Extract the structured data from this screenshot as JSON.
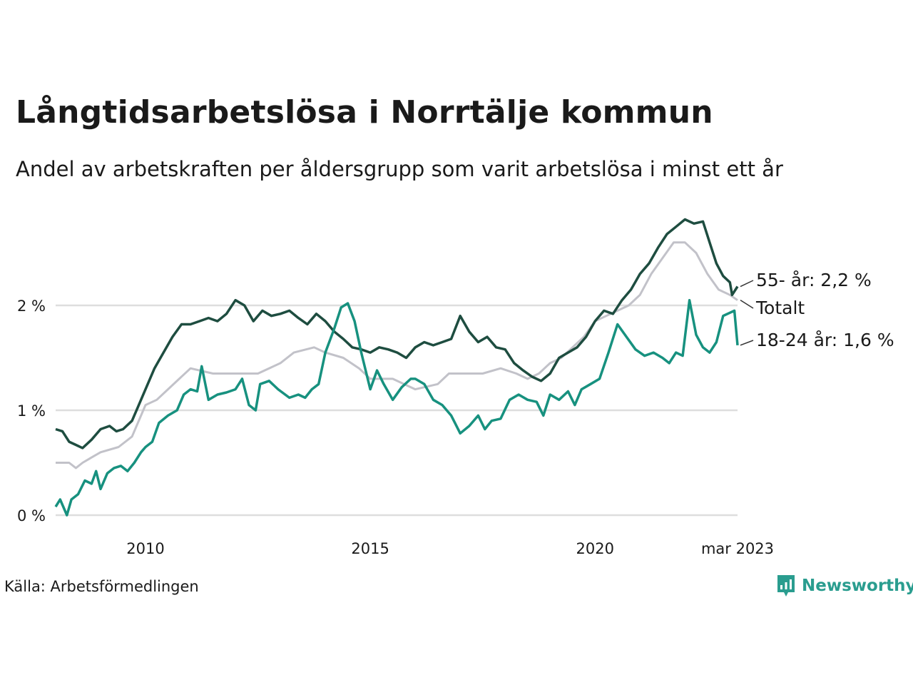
{
  "title": "Långtidsarbetslösa i Norrtälje kommun",
  "subtitle": "Andel av arbetskraften per åldersgrupp som varit arbetslösa i minst ett år",
  "source": "Källa: Arbetsförmedlingen",
  "logo": {
    "text": "Newsworthy",
    "icon": "newsworthy-chart-icon",
    "color": "#2a9d8f"
  },
  "chart_data": {
    "type": "line",
    "xlim": [
      2008.0,
      2023.17
    ],
    "ylim": [
      0,
      2.8
    ],
    "grid": true,
    "x_ticks": [
      {
        "value": 2010,
        "label": "2010"
      },
      {
        "value": 2015,
        "label": "2015"
      },
      {
        "value": 2020,
        "label": "2020"
      },
      {
        "value": 2023.17,
        "label": "mar 2023"
      }
    ],
    "y_ticks": [
      {
        "value": 0,
        "label": "0 %"
      },
      {
        "value": 1,
        "label": "1 %"
      },
      {
        "value": 2,
        "label": "2 %"
      }
    ],
    "series": [
      {
        "name": "Totalt",
        "end_label": "Totalt",
        "color": "#c2c2c9",
        "points": [
          [
            2008.0,
            0.5
          ],
          [
            2008.3,
            0.5
          ],
          [
            2008.45,
            0.45
          ],
          [
            2008.6,
            0.5
          ],
          [
            2008.8,
            0.55
          ],
          [
            2009.0,
            0.6
          ],
          [
            2009.4,
            0.65
          ],
          [
            2009.7,
            0.75
          ],
          [
            2009.9,
            0.95
          ],
          [
            2010.0,
            1.05
          ],
          [
            2010.25,
            1.1
          ],
          [
            2010.5,
            1.2
          ],
          [
            2010.75,
            1.3
          ],
          [
            2011.0,
            1.4
          ],
          [
            2011.5,
            1.35
          ],
          [
            2012.0,
            1.35
          ],
          [
            2012.5,
            1.35
          ],
          [
            2013.0,
            1.45
          ],
          [
            2013.3,
            1.55
          ],
          [
            2013.75,
            1.6
          ],
          [
            2014.0,
            1.55
          ],
          [
            2014.4,
            1.5
          ],
          [
            2014.75,
            1.4
          ],
          [
            2015.0,
            1.3
          ],
          [
            2015.5,
            1.3
          ],
          [
            2016.0,
            1.2
          ],
          [
            2016.5,
            1.25
          ],
          [
            2016.75,
            1.35
          ],
          [
            2017.0,
            1.35
          ],
          [
            2017.5,
            1.35
          ],
          [
            2017.9,
            1.4
          ],
          [
            2018.25,
            1.35
          ],
          [
            2018.5,
            1.3
          ],
          [
            2018.75,
            1.35
          ],
          [
            2019.0,
            1.45
          ],
          [
            2019.25,
            1.5
          ],
          [
            2019.5,
            1.6
          ],
          [
            2019.75,
            1.7
          ],
          [
            2020.0,
            1.85
          ],
          [
            2020.25,
            1.9
          ],
          [
            2020.5,
            1.95
          ],
          [
            2020.75,
            2.0
          ],
          [
            2021.0,
            2.1
          ],
          [
            2021.25,
            2.3
          ],
          [
            2021.5,
            2.45
          ],
          [
            2021.75,
            2.6
          ],
          [
            2022.0,
            2.6
          ],
          [
            2022.25,
            2.5
          ],
          [
            2022.5,
            2.3
          ],
          [
            2022.75,
            2.15
          ],
          [
            2023.0,
            2.1
          ],
          [
            2023.17,
            2.05
          ]
        ]
      },
      {
        "name": "55- år",
        "end_label": "55- år: 2,2 %",
        "color": "#1e4d40",
        "points": [
          [
            2008.0,
            0.82
          ],
          [
            2008.15,
            0.8
          ],
          [
            2008.3,
            0.7
          ],
          [
            2008.45,
            0.67
          ],
          [
            2008.6,
            0.64
          ],
          [
            2008.8,
            0.72
          ],
          [
            2009.0,
            0.82
          ],
          [
            2009.2,
            0.85
          ],
          [
            2009.35,
            0.8
          ],
          [
            2009.5,
            0.82
          ],
          [
            2009.7,
            0.9
          ],
          [
            2009.85,
            1.05
          ],
          [
            2010.0,
            1.2
          ],
          [
            2010.2,
            1.4
          ],
          [
            2010.4,
            1.55
          ],
          [
            2010.6,
            1.7
          ],
          [
            2010.8,
            1.82
          ],
          [
            2011.0,
            1.82
          ],
          [
            2011.2,
            1.85
          ],
          [
            2011.4,
            1.88
          ],
          [
            2011.6,
            1.85
          ],
          [
            2011.8,
            1.92
          ],
          [
            2012.0,
            2.05
          ],
          [
            2012.2,
            2.0
          ],
          [
            2012.4,
            1.85
          ],
          [
            2012.6,
            1.95
          ],
          [
            2012.8,
            1.9
          ],
          [
            2013.0,
            1.92
          ],
          [
            2013.2,
            1.95
          ],
          [
            2013.4,
            1.88
          ],
          [
            2013.6,
            1.82
          ],
          [
            2013.8,
            1.92
          ],
          [
            2014.0,
            1.85
          ],
          [
            2014.2,
            1.75
          ],
          [
            2014.4,
            1.68
          ],
          [
            2014.6,
            1.6
          ],
          [
            2014.8,
            1.58
          ],
          [
            2015.0,
            1.55
          ],
          [
            2015.2,
            1.6
          ],
          [
            2015.4,
            1.58
          ],
          [
            2015.6,
            1.55
          ],
          [
            2015.8,
            1.5
          ],
          [
            2016.0,
            1.6
          ],
          [
            2016.2,
            1.65
          ],
          [
            2016.4,
            1.62
          ],
          [
            2016.6,
            1.65
          ],
          [
            2016.8,
            1.68
          ],
          [
            2017.0,
            1.9
          ],
          [
            2017.2,
            1.75
          ],
          [
            2017.4,
            1.65
          ],
          [
            2017.6,
            1.7
          ],
          [
            2017.8,
            1.6
          ],
          [
            2018.0,
            1.58
          ],
          [
            2018.2,
            1.45
          ],
          [
            2018.4,
            1.38
          ],
          [
            2018.6,
            1.32
          ],
          [
            2018.8,
            1.28
          ],
          [
            2019.0,
            1.35
          ],
          [
            2019.2,
            1.5
          ],
          [
            2019.4,
            1.55
          ],
          [
            2019.6,
            1.6
          ],
          [
            2019.8,
            1.7
          ],
          [
            2020.0,
            1.85
          ],
          [
            2020.2,
            1.95
          ],
          [
            2020.4,
            1.92
          ],
          [
            2020.6,
            2.05
          ],
          [
            2020.8,
            2.15
          ],
          [
            2021.0,
            2.3
          ],
          [
            2021.2,
            2.4
          ],
          [
            2021.4,
            2.55
          ],
          [
            2021.6,
            2.68
          ],
          [
            2021.8,
            2.75
          ],
          [
            2022.0,
            2.82
          ],
          [
            2022.2,
            2.78
          ],
          [
            2022.4,
            2.8
          ],
          [
            2022.55,
            2.6
          ],
          [
            2022.7,
            2.4
          ],
          [
            2022.85,
            2.28
          ],
          [
            2023.0,
            2.22
          ],
          [
            2023.05,
            2.1
          ],
          [
            2023.17,
            2.18
          ]
        ]
      },
      {
        "name": "18-24 år",
        "end_label": "18-24 år: 1,6 %",
        "color": "#17917f",
        "points": [
          [
            2008.0,
            0.08
          ],
          [
            2008.1,
            0.15
          ],
          [
            2008.25,
            0.0
          ],
          [
            2008.35,
            0.15
          ],
          [
            2008.5,
            0.2
          ],
          [
            2008.65,
            0.33
          ],
          [
            2008.8,
            0.3
          ],
          [
            2008.9,
            0.42
          ],
          [
            2009.0,
            0.25
          ],
          [
            2009.15,
            0.4
          ],
          [
            2009.3,
            0.45
          ],
          [
            2009.45,
            0.47
          ],
          [
            2009.6,
            0.42
          ],
          [
            2009.75,
            0.5
          ],
          [
            2009.9,
            0.6
          ],
          [
            2010.0,
            0.65
          ],
          [
            2010.15,
            0.7
          ],
          [
            2010.3,
            0.88
          ],
          [
            2010.5,
            0.95
          ],
          [
            2010.7,
            1.0
          ],
          [
            2010.85,
            1.15
          ],
          [
            2011.0,
            1.2
          ],
          [
            2011.15,
            1.18
          ],
          [
            2011.25,
            1.42
          ],
          [
            2011.4,
            1.1
          ],
          [
            2011.6,
            1.15
          ],
          [
            2011.8,
            1.17
          ],
          [
            2012.0,
            1.2
          ],
          [
            2012.15,
            1.3
          ],
          [
            2012.3,
            1.05
          ],
          [
            2012.45,
            1.0
          ],
          [
            2012.55,
            1.25
          ],
          [
            2012.75,
            1.28
          ],
          [
            2012.95,
            1.2
          ],
          [
            2013.2,
            1.12
          ],
          [
            2013.4,
            1.15
          ],
          [
            2013.55,
            1.12
          ],
          [
            2013.7,
            1.2
          ],
          [
            2013.85,
            1.25
          ],
          [
            2014.0,
            1.55
          ],
          [
            2014.2,
            1.78
          ],
          [
            2014.35,
            1.98
          ],
          [
            2014.5,
            2.02
          ],
          [
            2014.65,
            1.85
          ],
          [
            2014.8,
            1.55
          ],
          [
            2015.0,
            1.2
          ],
          [
            2015.15,
            1.38
          ],
          [
            2015.3,
            1.25
          ],
          [
            2015.5,
            1.1
          ],
          [
            2015.7,
            1.22
          ],
          [
            2015.9,
            1.3
          ],
          [
            2016.0,
            1.3
          ],
          [
            2016.2,
            1.25
          ],
          [
            2016.4,
            1.1
          ],
          [
            2016.6,
            1.05
          ],
          [
            2016.8,
            0.95
          ],
          [
            2017.0,
            0.78
          ],
          [
            2017.2,
            0.85
          ],
          [
            2017.4,
            0.95
          ],
          [
            2017.55,
            0.82
          ],
          [
            2017.7,
            0.9
          ],
          [
            2017.9,
            0.92
          ],
          [
            2018.1,
            1.1
          ],
          [
            2018.3,
            1.15
          ],
          [
            2018.5,
            1.1
          ],
          [
            2018.7,
            1.08
          ],
          [
            2018.85,
            0.95
          ],
          [
            2019.0,
            1.15
          ],
          [
            2019.2,
            1.1
          ],
          [
            2019.4,
            1.18
          ],
          [
            2019.55,
            1.05
          ],
          [
            2019.7,
            1.2
          ],
          [
            2019.9,
            1.25
          ],
          [
            2020.1,
            1.3
          ],
          [
            2020.3,
            1.55
          ],
          [
            2020.5,
            1.82
          ],
          [
            2020.7,
            1.7
          ],
          [
            2020.9,
            1.58
          ],
          [
            2021.1,
            1.52
          ],
          [
            2021.3,
            1.55
          ],
          [
            2021.5,
            1.5
          ],
          [
            2021.65,
            1.45
          ],
          [
            2021.8,
            1.55
          ],
          [
            2021.95,
            1.52
          ],
          [
            2022.1,
            2.05
          ],
          [
            2022.25,
            1.72
          ],
          [
            2022.4,
            1.6
          ],
          [
            2022.55,
            1.55
          ],
          [
            2022.7,
            1.65
          ],
          [
            2022.85,
            1.9
          ],
          [
            2023.0,
            1.93
          ],
          [
            2023.1,
            1.95
          ],
          [
            2023.17,
            1.62
          ]
        ]
      }
    ]
  }
}
